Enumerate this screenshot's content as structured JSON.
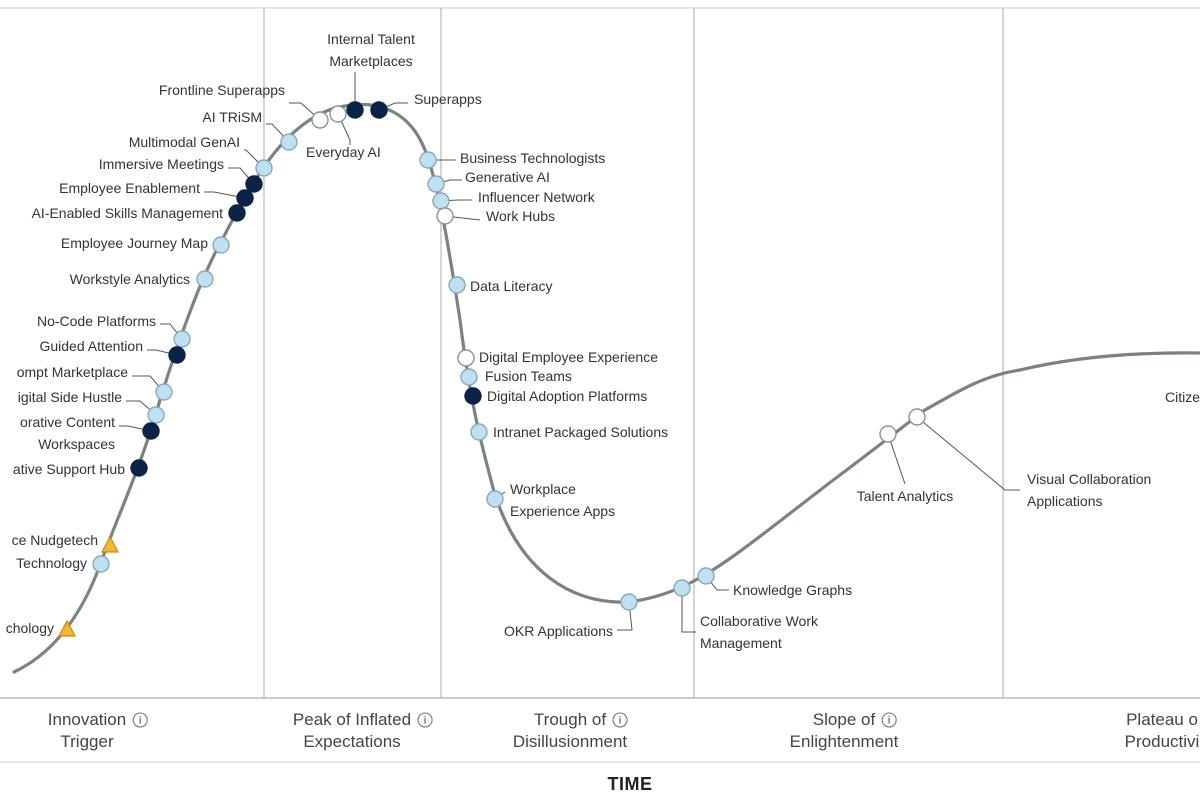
{
  "chart_data": {
    "type": "scatter",
    "subtype": "hype-cycle",
    "xlabel": "TIME",
    "ylabel": "",
    "phases": [
      {
        "id": "innovation",
        "lines": [
          "Innovation",
          "Trigger"
        ],
        "info_icon": "info-circle-icon"
      },
      {
        "id": "peak",
        "lines": [
          "Peak of Inflated",
          "Expectations"
        ],
        "info_icon": "info-circle-icon"
      },
      {
        "id": "trough",
        "lines": [
          "Trough of",
          "Disillusionment"
        ],
        "info_icon": "info-circle-icon"
      },
      {
        "id": "slope",
        "lines": [
          "Slope of",
          "Enlightenment"
        ],
        "info_icon": "info-circle-icon"
      },
      {
        "id": "plateau",
        "lines": [
          "Plateau o",
          "Productivi"
        ],
        "info_icon": "none"
      }
    ],
    "marker_types": {
      "light": {
        "fill": "#bfe0f0",
        "stroke": "#8aa9b8"
      },
      "dark": {
        "fill": "#0b2346",
        "stroke": "#0b2346"
      },
      "white": {
        "fill": "#ffffff",
        "stroke": "#8a9297"
      },
      "triangle": {
        "fill": "#f5b731",
        "stroke": "#c78c10"
      }
    },
    "points": [
      {
        "name": "Frontline Superapps",
        "marker": "white"
      },
      {
        "name": "AI TRiSM",
        "marker": "light"
      },
      {
        "name": "Multimodal GenAI",
        "marker": "light"
      },
      {
        "name": "Immersive Meetings",
        "marker": "dark"
      },
      {
        "name": "Employee Enablement",
        "marker": "dark"
      },
      {
        "name": "AI-Enabled Skills Management",
        "marker": "dark"
      },
      {
        "name": "Employee Journey Map",
        "marker": "light"
      },
      {
        "name": "Workstyle Analytics",
        "marker": "light"
      },
      {
        "name": "No-Code Platforms",
        "marker": "light"
      },
      {
        "name": "Guided Attention",
        "marker": "dark"
      },
      {
        "name": "ompt Marketplace",
        "marker": "light"
      },
      {
        "name": "igital Side Hustle",
        "marker": "light"
      },
      {
        "name": "orative Content",
        "name2": "Workspaces",
        "marker": "dark"
      },
      {
        "name": "ative Support Hub",
        "marker": "dark"
      },
      {
        "name": "ce Nudgetech",
        "marker": "triangle"
      },
      {
        "name": "Technology",
        "marker": "light"
      },
      {
        "name": "chology",
        "marker": "triangle"
      },
      {
        "name": "Internal Talent",
        "name2": "Marketplaces",
        "marker": "dark"
      },
      {
        "name": "Everyday AI",
        "marker": "white"
      },
      {
        "name": "Superapps",
        "marker": "dark"
      },
      {
        "name": "Business Technologists",
        "marker": "light"
      },
      {
        "name": "Generative AI",
        "marker": "light"
      },
      {
        "name": "Influencer Network",
        "marker": "light"
      },
      {
        "name": "Work Hubs",
        "marker": "white"
      },
      {
        "name": "Data Literacy",
        "marker": "light"
      },
      {
        "name": "Digital Employee Experience",
        "marker": "white"
      },
      {
        "name": "Fusion Teams",
        "marker": "light"
      },
      {
        "name": "Digital Adoption Platforms",
        "marker": "dark"
      },
      {
        "name": "Intranet Packaged Solutions",
        "marker": "light"
      },
      {
        "name": "Workplace",
        "name2": "Experience Apps",
        "marker": "light"
      },
      {
        "name": "OKR Applications",
        "marker": "light"
      },
      {
        "name": "Collaborative Work",
        "name2": "Management",
        "marker": "light"
      },
      {
        "name": "Knowledge Graphs",
        "marker": "light"
      },
      {
        "name": "Talent Analytics",
        "marker": "white"
      },
      {
        "name": "Visual Collaboration",
        "name2": "Applications",
        "marker": "white"
      },
      {
        "name": "Citize",
        "marker": "none"
      }
    ]
  }
}
